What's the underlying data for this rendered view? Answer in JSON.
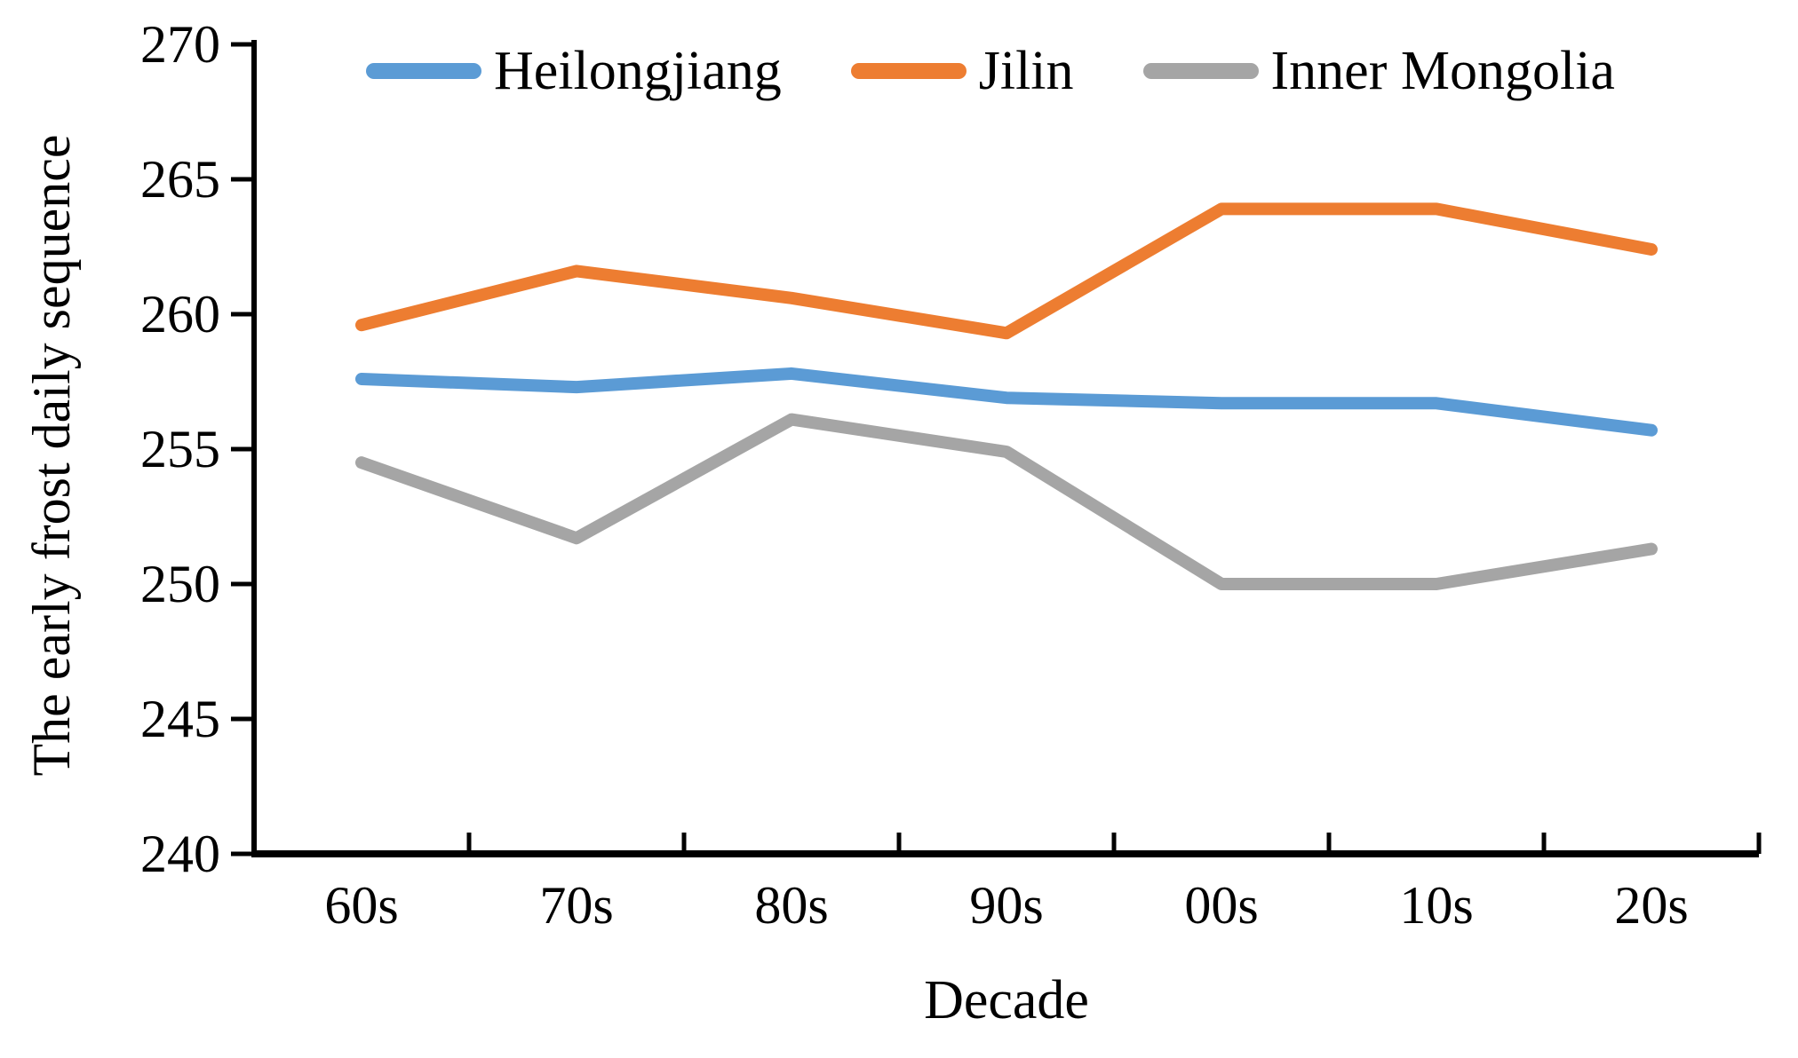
{
  "chart_data": {
    "type": "line",
    "title": "",
    "xlabel": "Decade",
    "ylabel": "The early frost daily sequence",
    "categories": [
      "60s",
      "70s",
      "80s",
      "90s",
      "00s",
      "10s",
      "20s"
    ],
    "series": [
      {
        "name": "Heilongjiang",
        "color": "#5B9BD5",
        "values": [
          257.6,
          257.3,
          257.8,
          256.9,
          256.7,
          256.7,
          255.7
        ]
      },
      {
        "name": "Jilin",
        "color": "#ED7D31",
        "values": [
          259.6,
          261.6,
          260.6,
          259.3,
          263.9,
          263.9,
          262.4
        ]
      },
      {
        "name": "Inner Mongolia",
        "color": "#A5A5A5",
        "values": [
          254.5,
          251.7,
          256.1,
          254.9,
          250.0,
          250.0,
          251.3
        ]
      }
    ],
    "ylim": [
      240,
      270
    ],
    "yticks": [
      240,
      245,
      250,
      255,
      260,
      265,
      270
    ],
    "grid": false,
    "legend_position": "top",
    "axis_color": "#000000",
    "background": "#ffffff",
    "line_width": 14
  }
}
